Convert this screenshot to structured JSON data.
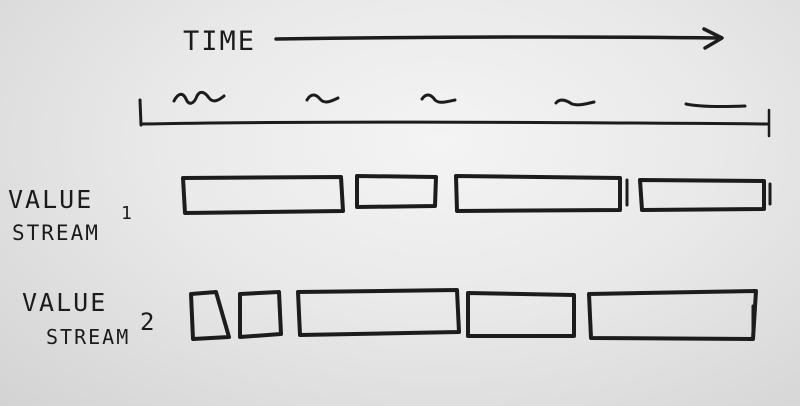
{
  "time_axis": {
    "label": "TIME"
  },
  "value_streams": [
    {
      "label_line1": "VALUE",
      "label_line2": "STREAM",
      "number": "1"
    },
    {
      "label_line1": "VALUE",
      "label_line2": "STREAM",
      "number": "2"
    }
  ],
  "colors": {
    "ink": "#1c1c1c",
    "board": "#e9e9e9"
  }
}
